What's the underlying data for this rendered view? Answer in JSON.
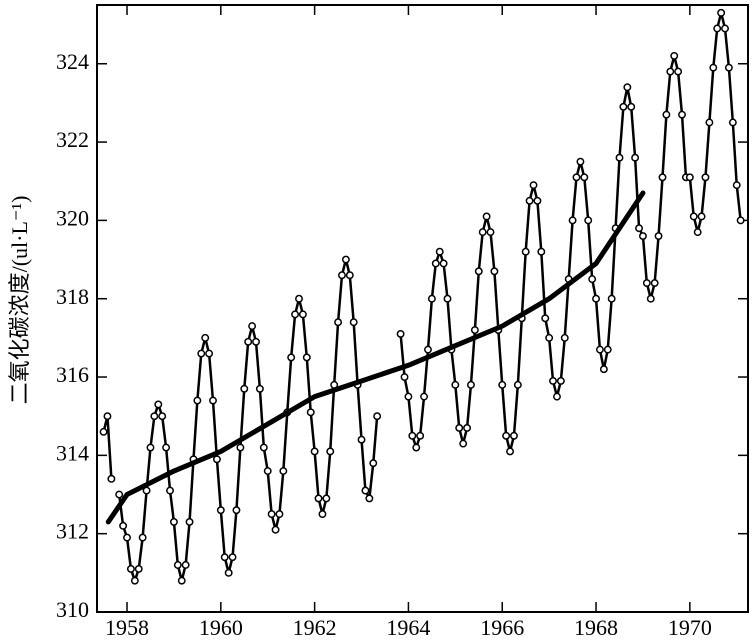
{
  "chart_data": {
    "type": "line",
    "y_label": "二氧化碳浓度/(ul·L⁻¹)",
    "xlim": [
      1957.36,
      1971.24
    ],
    "ylim": [
      310,
      325.5
    ],
    "xticks": [
      1958,
      1960,
      1962,
      1964,
      1966,
      1968,
      1970
    ],
    "yticks": [
      310,
      312,
      314,
      316,
      318,
      320,
      322,
      324
    ],
    "grid": false,
    "series": [
      {
        "color": "#000000",
        "markers": true,
        "x": [
          1957.5,
          1957.583,
          1957.667,
          1957.75,
          1957.833,
          1957.917,
          1958.0,
          1958.083,
          1958.167,
          1958.25,
          1958.333,
          1958.417,
          1958.5,
          1958.583,
          1958.667,
          1958.75,
          1958.833,
          1958.917,
          1959.0,
          1959.083,
          1959.167,
          1959.25,
          1959.333,
          1959.417,
          1959.5,
          1959.583,
          1959.667,
          1959.75,
          1959.833,
          1959.917,
          1960.0,
          1960.083,
          1960.167,
          1960.25,
          1960.333,
          1960.417,
          1960.5,
          1960.583,
          1960.667,
          1960.75,
          1960.833,
          1960.917,
          1961.0,
          1961.083,
          1961.167,
          1961.25,
          1961.333,
          1961.417,
          1961.5,
          1961.583,
          1961.667,
          1961.75,
          1961.833,
          1961.917,
          1962.0,
          1962.083,
          1962.167,
          1962.25,
          1962.333,
          1962.417,
          1962.5,
          1962.583,
          1962.667,
          1962.75,
          1962.833,
          1962.917,
          1963.0,
          1963.083,
          1963.167,
          1963.25,
          1963.333,
          1963.417,
          1963.5,
          1963.583,
          1963.667,
          1963.75,
          1963.833,
          1963.917,
          1964.0,
          1964.083,
          1964.167,
          1964.25,
          1964.333,
          1964.417,
          1964.5,
          1964.583,
          1964.667,
          1964.75,
          1964.833,
          1964.917,
          1965.0,
          1965.083,
          1965.167,
          1965.25,
          1965.333,
          1965.417,
          1965.5,
          1965.583,
          1965.667,
          1965.75,
          1965.833,
          1965.917,
          1966.0,
          1966.083,
          1966.167,
          1966.25,
          1966.333,
          1966.417,
          1966.5,
          1966.583,
          1966.667,
          1966.75,
          1966.833,
          1966.917,
          1967.0,
          1967.083,
          1967.167,
          1967.25,
          1967.333,
          1967.417,
          1967.5,
          1967.583,
          1967.667,
          1967.75,
          1967.833,
          1967.917,
          1968.0,
          1968.083,
          1968.167,
          1968.25,
          1968.333,
          1968.417,
          1968.5,
          1968.583,
          1968.667,
          1968.75,
          1968.833,
          1968.917,
          1969.0,
          1969.083,
          1969.167,
          1969.25,
          1969.333,
          1969.417,
          1969.5,
          1969.583,
          1969.667,
          1969.75,
          1969.833,
          1969.917,
          1970.0,
          1970.083,
          1970.167,
          1970.25,
          1970.333,
          1970.417,
          1970.5,
          1970.583,
          1970.667,
          1970.75,
          1970.833,
          1970.917,
          1971.0,
          1971.083
        ],
        "values": [
          314.6,
          315.0,
          313.4,
          null,
          313.0,
          312.2,
          311.9,
          311.1,
          310.8,
          311.1,
          311.9,
          313.1,
          314.2,
          315.0,
          315.3,
          315.0,
          314.2,
          313.1,
          312.3,
          311.2,
          310.8,
          311.2,
          312.3,
          313.9,
          315.4,
          316.6,
          317.0,
          316.6,
          315.4,
          313.9,
          312.6,
          311.4,
          311.0,
          311.4,
          312.6,
          314.2,
          315.7,
          316.9,
          317.3,
          316.9,
          315.7,
          314.2,
          313.6,
          312.5,
          312.1,
          312.5,
          313.6,
          315.1,
          316.5,
          317.6,
          318.0,
          317.6,
          316.5,
          315.1,
          314.1,
          312.9,
          312.5,
          312.9,
          314.1,
          315.8,
          317.4,
          318.6,
          319.0,
          318.6,
          317.4,
          315.8,
          314.4,
          313.1,
          312.9,
          313.8,
          315.0,
          null,
          null,
          null,
          null,
          null,
          317.1,
          316.0,
          315.5,
          314.5,
          314.2,
          314.5,
          315.5,
          316.7,
          318.0,
          318.9,
          319.2,
          318.9,
          318.0,
          316.7,
          315.8,
          314.7,
          314.3,
          314.7,
          315.8,
          317.2,
          318.7,
          319.7,
          320.1,
          319.7,
          318.7,
          317.2,
          315.8,
          314.5,
          314.1,
          314.5,
          315.8,
          317.5,
          319.2,
          320.5,
          320.9,
          320.5,
          319.2,
          317.5,
          317.0,
          315.9,
          315.5,
          315.9,
          317.0,
          318.5,
          320.0,
          321.1,
          321.5,
          321.1,
          320.0,
          318.5,
          318.0,
          316.7,
          316.2,
          316.7,
          318.0,
          319.8,
          321.6,
          322.9,
          323.4,
          322.9,
          321.6,
          319.8,
          319.6,
          318.4,
          318.0,
          318.4,
          319.6,
          321.1,
          322.7,
          323.8,
          324.2,
          323.8,
          322.7,
          321.1,
          321.1,
          320.1,
          319.7,
          320.1,
          321.1,
          322.5,
          323.9,
          324.9,
          325.3,
          324.9,
          323.9,
          322.5,
          320.9,
          320.0
        ]
      },
      {
        "color": "#000000",
        "markers": false,
        "x": [
          1957.6,
          1958,
          1959,
          1960,
          1961,
          1962,
          1963,
          1964,
          1965,
          1966,
          1967,
          1968,
          1969
        ],
        "values": [
          312.3,
          313.0,
          313.6,
          314.1,
          314.8,
          315.5,
          315.9,
          316.3,
          316.8,
          317.3,
          318.0,
          318.9,
          320.7
        ]
      }
    ]
  }
}
